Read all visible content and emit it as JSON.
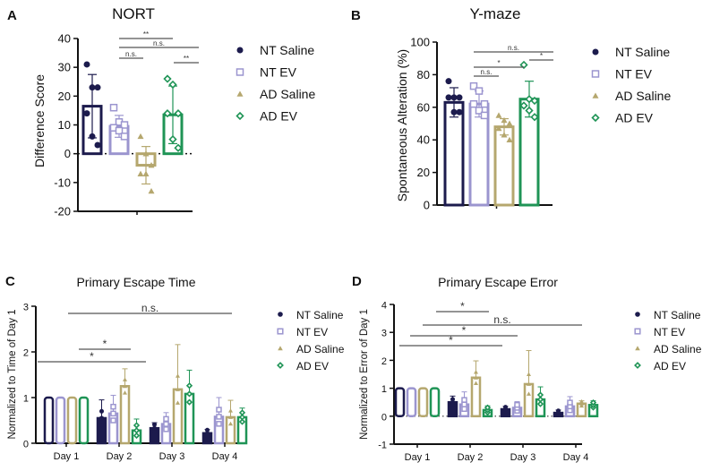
{
  "colors": {
    "NT Saline": "#1c1b4d",
    "NT EV": "#9b95cf",
    "AD Saline": "#b5a76e",
    "AD EV": "#1f9456"
  },
  "chart_data": [
    {
      "panel": "A",
      "type": "bar",
      "title": "NORT",
      "xlabel": "",
      "ylabel": "Difference Score",
      "ylim": [
        -20,
        40
      ],
      "yticks": [
        "-20",
        "-10",
        "0",
        "10",
        "20",
        "30",
        "40"
      ],
      "zero_line": "dotted",
      "legend": [
        "NT Saline",
        "NT EV",
        "AD Saline",
        "AD EV"
      ],
      "legend_position": "right",
      "groups": [
        {
          "name": "NT Saline",
          "marker": "circle",
          "mean": 16.5,
          "sd": 11,
          "points": [
            31,
            23,
            23,
            14,
            6,
            3
          ]
        },
        {
          "name": "NT EV",
          "marker": "square",
          "mean": 9.5,
          "sd": 3.8,
          "points": [
            16,
            11,
            10,
            9,
            8,
            6
          ]
        },
        {
          "name": "AD Saline",
          "marker": "triangle",
          "mean": -4,
          "sd": 6.5,
          "points": [
            6,
            0,
            -4,
            -7,
            -7,
            -13
          ]
        },
        {
          "name": "AD EV",
          "marker": "diamond",
          "mean": 13.5,
          "sd": 10,
          "points": [
            26,
            24,
            14,
            14,
            5,
            2
          ]
        }
      ],
      "significance": [
        {
          "from": "NT EV",
          "to": "AD Saline",
          "label": "n.s."
        },
        {
          "from": "NT EV",
          "to": "AD EV",
          "label": "n.s."
        },
        {
          "from": "NT EV",
          "to": "AD Saline",
          "label": "**",
          "span": "upper"
        },
        {
          "from": "AD Saline",
          "to": "AD EV",
          "label": "**"
        }
      ]
    },
    {
      "panel": "B",
      "type": "bar",
      "title": "Y-maze",
      "xlabel": "",
      "ylabel": "Spontaneous Alteration (%)",
      "ylim": [
        0,
        100
      ],
      "yticks": [
        "0",
        "20",
        "40",
        "60",
        "80",
        "100"
      ],
      "legend": [
        "NT Saline",
        "NT EV",
        "AD Saline",
        "AD EV"
      ],
      "legend_position": "right",
      "groups": [
        {
          "name": "NT Saline",
          "marker": "circle",
          "mean": 63,
          "sd": 9,
          "points": [
            76,
            66,
            66,
            66,
            57,
            57
          ]
        },
        {
          "name": "NT EV",
          "marker": "square",
          "mean": 62,
          "sd": 8,
          "points": [
            73,
            70,
            62,
            62,
            58,
            55
          ]
        },
        {
          "name": "AD Saline",
          "marker": "triangle",
          "mean": 48,
          "sd": 5,
          "points": [
            55,
            52,
            50,
            47,
            43,
            40
          ]
        },
        {
          "name": "AD EV",
          "marker": "diamond",
          "mean": 65,
          "sd": 11,
          "points": [
            86,
            65,
            64,
            61,
            58,
            54
          ]
        }
      ],
      "significance": [
        {
          "from": "NT EV",
          "to": "AD Saline",
          "label": "n.s."
        },
        {
          "from": "NT EV",
          "to": "AD EV",
          "label": "*"
        },
        {
          "from": "NT EV",
          "to": "AD EV",
          "label": "n.s.",
          "span": "upper"
        },
        {
          "from": "AD Saline",
          "to": "AD EV",
          "label": "*"
        }
      ]
    },
    {
      "panel": "C",
      "type": "bar",
      "title": "Primary Escape Time",
      "xlabel": "",
      "ylabel": "Normalized to Time of Day 1",
      "ylim": [
        0,
        3
      ],
      "yticks": [
        "0",
        "1",
        "2",
        "3"
      ],
      "categories": [
        "Day 1",
        "Day 2",
        "Day 3",
        "Day 4"
      ],
      "legend": [
        "NT Saline",
        "NT EV",
        "AD Saline",
        "AD EV"
      ],
      "legend_position": "right",
      "series": [
        {
          "name": "NT Saline",
          "marker": "circle",
          "values": [
            1.0,
            0.55,
            0.33,
            0.22
          ],
          "sd": [
            0,
            0.4,
            0.12,
            0.08
          ]
        },
        {
          "name": "NT EV",
          "marker": "square",
          "values": [
            1.0,
            0.65,
            0.42,
            0.58
          ],
          "sd": [
            0,
            0.4,
            0.25,
            0.42
          ]
        },
        {
          "name": "AD Saline",
          "marker": "triangle",
          "values": [
            1.0,
            1.25,
            1.18,
            0.57
          ],
          "sd": [
            0,
            0.38,
            0.98,
            0.37
          ]
        },
        {
          "name": "AD EV",
          "marker": "diamond",
          "values": [
            1.0,
            0.28,
            1.08,
            0.57
          ],
          "sd": [
            0,
            0.25,
            0.52,
            0.2
          ]
        }
      ],
      "significance": [
        {
          "from": "Day 1",
          "to": "Day 3",
          "label": "n.s."
        },
        {
          "from": "Day 2",
          "to": "Day 2",
          "label": "*"
        },
        {
          "from": "Day 1",
          "to": "Day 2",
          "label": "*"
        }
      ]
    },
    {
      "panel": "D",
      "type": "bar",
      "title": "Primary Escape Error",
      "xlabel": "",
      "ylabel": "Normalized to Error of Day 1",
      "ylim": [
        -1,
        4
      ],
      "yticks": [
        "-1",
        "0",
        "1",
        "2",
        "3",
        "4"
      ],
      "categories": [
        "Day 1",
        "Day 2",
        "Day 3",
        "Day 4"
      ],
      "zero_line": "dotted",
      "legend": [
        "NT Saline",
        "NT EV",
        "AD Saline",
        "AD EV"
      ],
      "legend_position": "right",
      "series": [
        {
          "name": "NT Saline",
          "marker": "circle",
          "values": [
            1.0,
            0.5,
            0.25,
            0.12
          ],
          "sd": [
            0,
            0.22,
            0.1,
            0.1
          ]
        },
        {
          "name": "NT EV",
          "marker": "square",
          "values": [
            1.0,
            0.42,
            0.3,
            0.35
          ],
          "sd": [
            0,
            0.45,
            0.22,
            0.35
          ]
        },
        {
          "name": "AD Saline",
          "marker": "triangle",
          "values": [
            1.0,
            1.38,
            1.15,
            0.45
          ],
          "sd": [
            0,
            0.6,
            1.2,
            0.1
          ]
        },
        {
          "name": "AD EV",
          "marker": "diamond",
          "values": [
            1.0,
            0.22,
            0.6,
            0.4
          ],
          "sd": [
            0,
            0.15,
            0.45,
            0.15
          ]
        }
      ],
      "significance": [
        {
          "from": "Day 2",
          "to": "Day 2",
          "label": "*"
        },
        {
          "from": "Day 1",
          "to": "Day 4",
          "label": "n.s."
        },
        {
          "from": "Day 1",
          "to": "Day 3",
          "label": "*"
        },
        {
          "from": "Day 1",
          "to": "Day 2",
          "label": "*"
        }
      ]
    }
  ]
}
